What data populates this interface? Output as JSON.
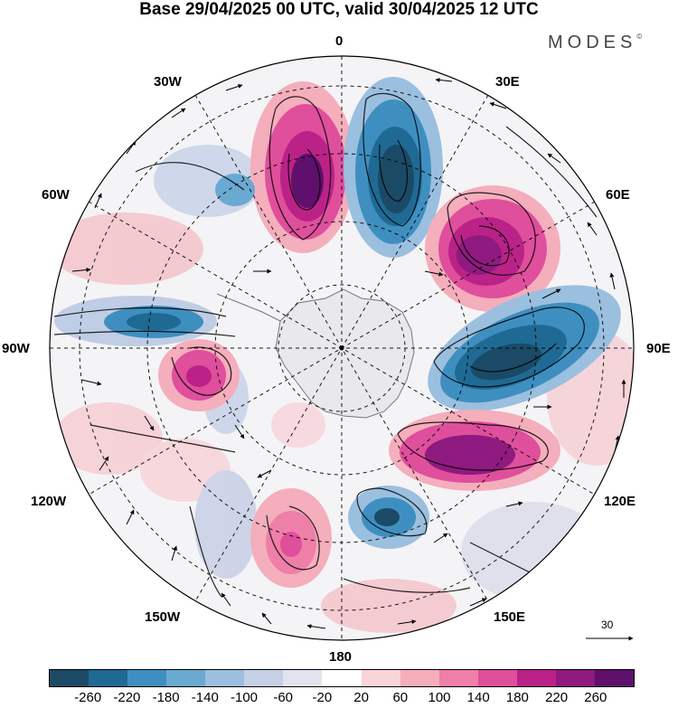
{
  "header": {
    "title": "Base 29/04/2025 00 UTC, valid 30/04/2025 12 UTC",
    "brand": "MODES",
    "brand_mark": "©"
  },
  "map": {
    "projection": "polar-stereographic-south",
    "longitude_labels": {
      "0": "0",
      "30e": "30E",
      "60e": "60E",
      "90e": "90E",
      "120e": "120E",
      "150e": "150E",
      "180": "180",
      "150w": "150W",
      "120w": "120W",
      "90w": "90W",
      "60w": "60W",
      "30w": "30W"
    },
    "reference_vector_label": "30"
  },
  "colorbar": {
    "colors": [
      "#1b4a66",
      "#1f6a94",
      "#3e8fc0",
      "#6aa9d2",
      "#9bbfde",
      "#c5cfe6",
      "#e3e2ef",
      "#ffffff",
      "#f9d4d8",
      "#f4aebc",
      "#ee7fa8",
      "#df4f9c",
      "#bb2288",
      "#8f1a80",
      "#5f0f6c"
    ],
    "labels": [
      "-260",
      "-220",
      "-180",
      "-140",
      "-100",
      "-60",
      "-20",
      "20",
      "60",
      "100",
      "140",
      "180",
      "220",
      "260"
    ]
  }
}
